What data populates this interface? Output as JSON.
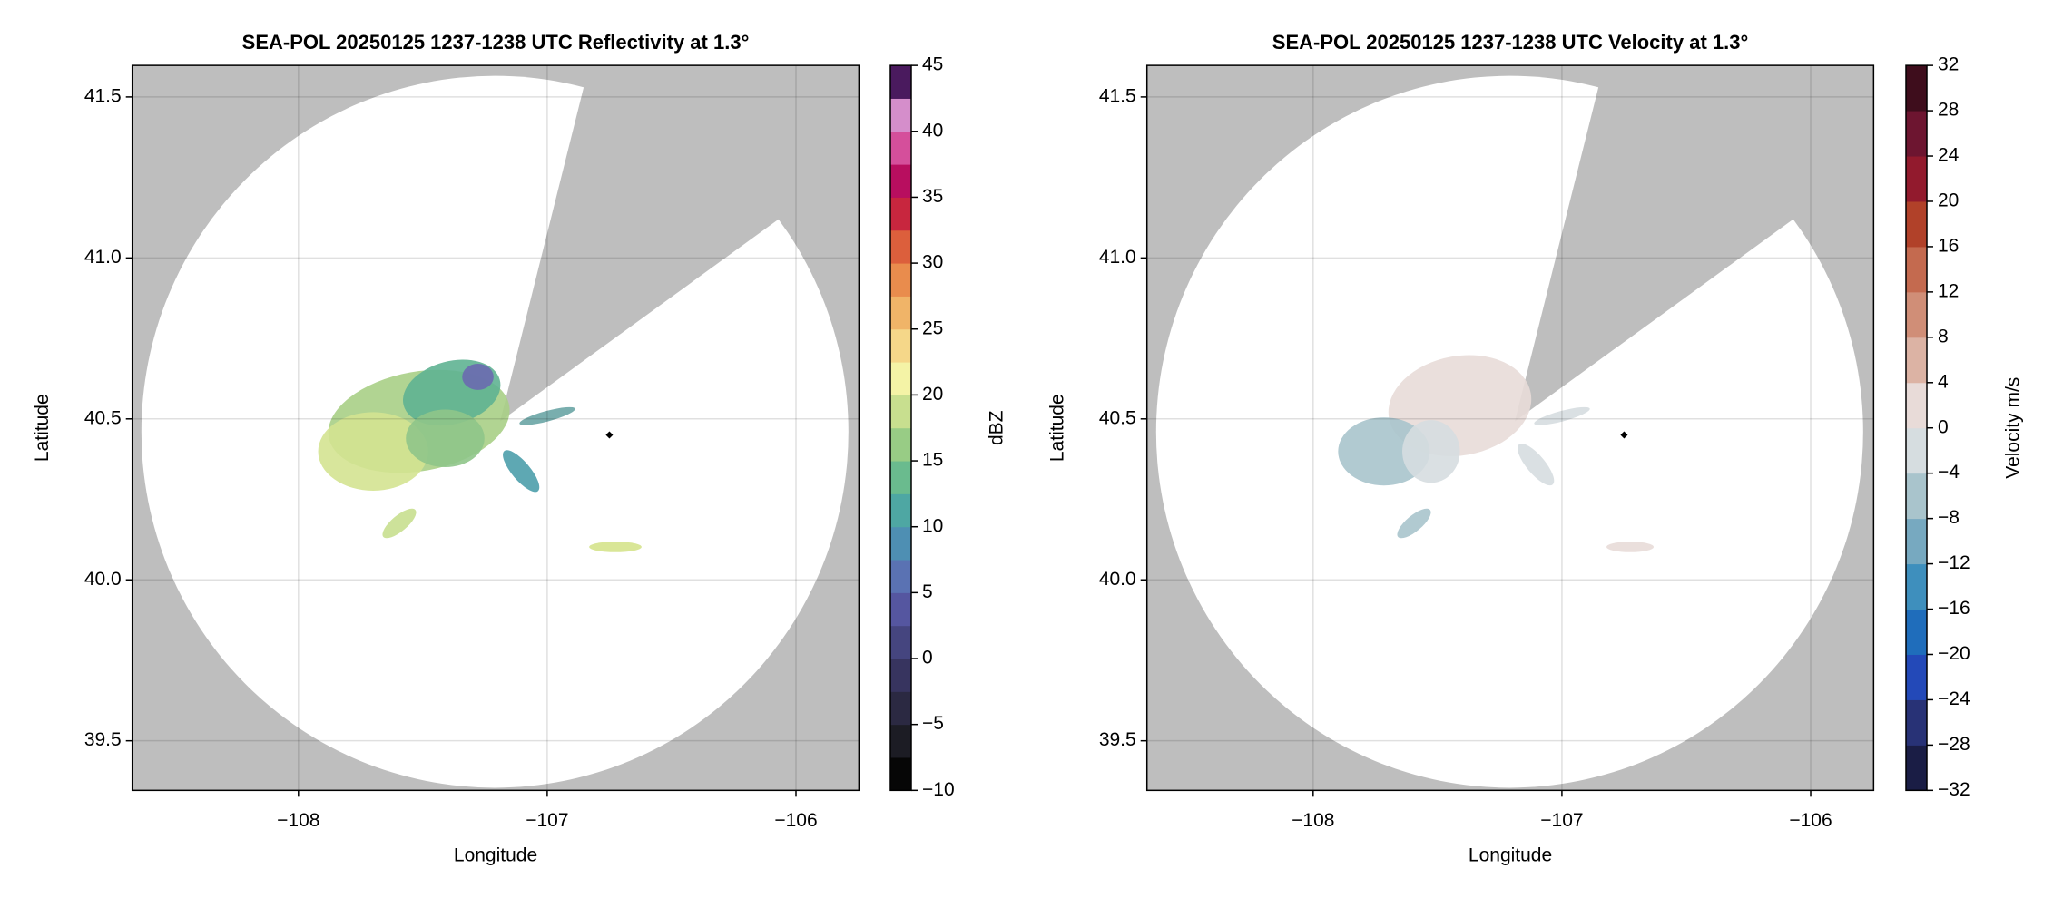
{
  "chart_data": [
    {
      "type": "radar-map",
      "title": "SEA-POL 20250125 1237-1238 UTC Reflectivity at 1.3°",
      "xlabel": "Longitude",
      "ylabel": "Latitude",
      "xlim": [
        -108.668,
        -105.747
      ],
      "ylim": [
        39.346,
        41.598
      ],
      "xticks": [
        {
          "value": -108,
          "label": "−108"
        },
        {
          "value": -107,
          "label": "−107"
        },
        {
          "value": -106,
          "label": "−106"
        }
      ],
      "yticks": [
        39.5,
        {
          "value": 40,
          "label": "40.0"
        },
        40.5,
        {
          "value": 41,
          "label": "41.0"
        },
        41.5
      ],
      "grid": true,
      "marker": {
        "x": -106.75,
        "y": 40.45
      },
      "colorbar": {
        "label": "dBZ",
        "clim": [
          -10,
          45
        ],
        "ticks": [
          {
            "value": -10,
            "label": "−10"
          },
          {
            "value": -5,
            "label": "−5"
          },
          0,
          5,
          10,
          15,
          20,
          25,
          30,
          35,
          40,
          45
        ],
        "colors": [
          "#060606",
          "#1c1c24",
          "#2b2942",
          "#37345f",
          "#45457f",
          "#5556a0",
          "#5a72b3",
          "#4e8fb3",
          "#4ea7a3",
          "#6abb8e",
          "#98cc85",
          "#c8df8f",
          "#f4f3a6",
          "#f5d789",
          "#f0b468",
          "#e98c4d",
          "#dc5f3c",
          "#c8263e",
          "#b80e5f",
          "#d54f9b",
          "#d58ecb",
          "#4a1a5e"
        ]
      }
    },
    {
      "type": "radar-map",
      "title": "SEA-POL 20250125 1237-1238 UTC Velocity at 1.3°",
      "xlabel": "Longitude",
      "ylabel": "Latitude",
      "xlim": [
        -108.668,
        -105.747
      ],
      "ylim": [
        39.346,
        41.598
      ],
      "xticks": [
        {
          "value": -108,
          "label": "−108"
        },
        {
          "value": -107,
          "label": "−107"
        },
        {
          "value": -106,
          "label": "−106"
        }
      ],
      "yticks": [
        39.5,
        {
          "value": 40,
          "label": "40.0"
        },
        40.5,
        {
          "value": 41,
          "label": "41.0"
        },
        41.5
      ],
      "grid": true,
      "marker": {
        "x": -106.75,
        "y": 40.45
      },
      "colorbar": {
        "label": "Velocity m/s",
        "clim": [
          -32,
          32
        ],
        "ticks": [
          {
            "value": -32,
            "label": "−32"
          },
          {
            "value": -28,
            "label": "−28"
          },
          {
            "value": -24,
            "label": "−24"
          },
          {
            "value": -20,
            "label": "−20"
          },
          {
            "value": -16,
            "label": "−16"
          },
          {
            "value": -12,
            "label": "−12"
          },
          {
            "value": -8,
            "label": "−8"
          },
          {
            "value": -4,
            "label": "−4"
          },
          0,
          4,
          8,
          12,
          16,
          20,
          24,
          28,
          32
        ],
        "colors": [
          "#1a1d45",
          "#283276",
          "#2349b8",
          "#1f6dbb",
          "#3e8fbd",
          "#77a9c0",
          "#a9c4cc",
          "#d6dde0",
          "#e8dbd8",
          "#dcb3a4",
          "#d08e77",
          "#c46a4f",
          "#b14129",
          "#921a2d",
          "#6d1530",
          "#3e0d1c"
        ]
      }
    }
  ]
}
